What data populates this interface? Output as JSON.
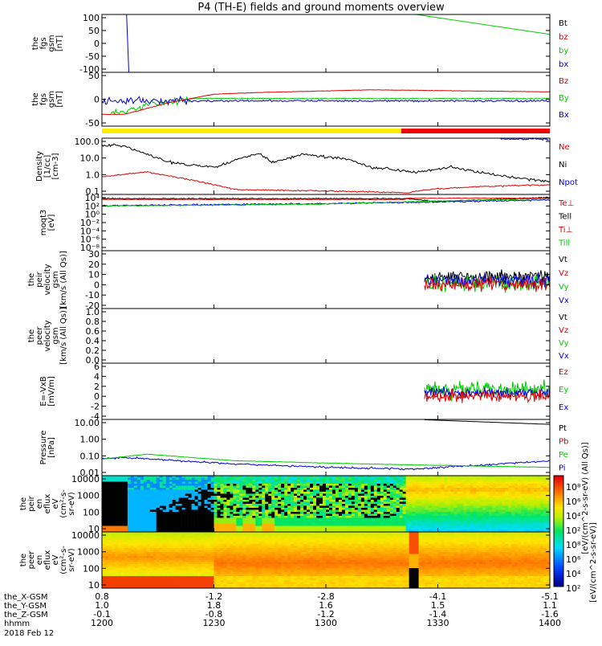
{
  "title": "P4 (TH-E) fields and ground moments overview",
  "colors": {
    "black": "#000000",
    "red": "#dd0000",
    "green": "#00cc00",
    "blue": "#0000dd",
    "yellow": "#ffee00",
    "barred": "#ee0000"
  },
  "panels": [
    {
      "key": "p1",
      "ylabel": [
        "the",
        "fgs",
        "gsm",
        "[nT]"
      ],
      "yticks": [
        "100",
        "50",
        "0",
        "-50",
        "-100"
      ],
      "legend": [
        {
          "t": "Bt",
          "c": "black"
        },
        {
          "t": "bz",
          "c": "red"
        },
        {
          "t": "by",
          "c": "green"
        },
        {
          "t": "bx",
          "c": "blue"
        }
      ]
    },
    {
      "key": "p2",
      "ylabel": [
        "the",
        "fgs",
        "gsm",
        "[nT]"
      ],
      "yticks": [
        "50",
        "0",
        "-50"
      ],
      "legend": [
        {
          "t": "Bz",
          "c": "red"
        },
        {
          "t": "By",
          "c": "green"
        },
        {
          "t": "Bx",
          "c": "blue"
        }
      ]
    },
    {
      "key": "p3",
      "ylabel": [
        "Density",
        "[1/cc]",
        "[cm-3]"
      ],
      "yticks": [
        "100.0",
        "10.0",
        "1.0",
        "0.1"
      ],
      "legend": [
        {
          "t": "Ne",
          "c": "red"
        },
        {
          "t": "Ni",
          "c": "black"
        },
        {
          "t": "Npot",
          "c": "blue"
        }
      ]
    },
    {
      "key": "p4",
      "ylabel": [
        "moqt3",
        "[eV]"
      ],
      "yticks": [
        "10⁴",
        "10²",
        "10⁰",
        "10⁻²",
        "10⁻⁴",
        "10⁻⁶",
        "10⁻⁸"
      ],
      "legend": [
        {
          "t": "Te⊥",
          "c": "red"
        },
        {
          "t": "Tell",
          "c": "black"
        },
        {
          "t": "Ti⊥",
          "c": "red"
        },
        {
          "t": "Till",
          "c": "green"
        }
      ]
    },
    {
      "key": "p5",
      "ylabel": [
        "the",
        "peir",
        "velocity",
        "gsm",
        "[km/s (All Qs)]"
      ],
      "yticks": [
        "30",
        "20",
        "10",
        "0",
        "-10",
        "-20"
      ],
      "legend": [
        {
          "t": "Vt",
          "c": "black"
        },
        {
          "t": "Vz",
          "c": "red"
        },
        {
          "t": "Vy",
          "c": "green"
        },
        {
          "t": "Vx",
          "c": "blue"
        }
      ]
    },
    {
      "key": "p6",
      "ylabel": [
        "the",
        "peer",
        "velocity",
        "gsm",
        "[km/s (All Qs)]"
      ],
      "yticks": [
        "1.0",
        "0.8",
        "0.6",
        "0.4",
        "0.2",
        "0.0"
      ],
      "legend": [
        {
          "t": "Vt",
          "c": "black"
        },
        {
          "t": "Vz",
          "c": "red"
        },
        {
          "t": "Vy",
          "c": "green"
        },
        {
          "t": "Vx",
          "c": "blue"
        }
      ]
    },
    {
      "key": "p7",
      "ylabel": [
        "E=-VxB",
        "[mV/m]"
      ],
      "yticks": [
        "6",
        "4",
        "2",
        "0",
        "-2",
        "-4"
      ],
      "legend": [
        {
          "t": "Ez",
          "c": "red"
        },
        {
          "t": "Ey",
          "c": "green"
        },
        {
          "t": "Ex",
          "c": "blue"
        }
      ]
    },
    {
      "key": "p8",
      "ylabel": [
        "Pressure",
        "[nPa]"
      ],
      "yticks": [
        "10.00",
        "1.00",
        "0.10",
        "0.01"
      ],
      "legend": [
        {
          "t": "Pt",
          "c": "black"
        },
        {
          "t": "Pb",
          "c": "red"
        },
        {
          "t": "Pe",
          "c": "green"
        },
        {
          "t": "Pi",
          "c": "blue"
        }
      ]
    },
    {
      "key": "p9",
      "ylabel": [
        "the",
        "peir",
        "en",
        "eflux",
        "eV",
        "(cm²-s-",
        "sr-eV)"
      ],
      "yticks": [
        "10000",
        "1000",
        "100",
        "10"
      ],
      "legend": []
    },
    {
      "key": "p10",
      "ylabel": [
        "the",
        "peer",
        "en",
        "eflux",
        "eV",
        "(cm²-s-",
        "sr-eV)"
      ],
      "yticks": [
        "10000",
        "1000",
        "100",
        "10"
      ],
      "legend": []
    }
  ],
  "colorbar": {
    "ticks": [
      "10⁸",
      "10⁶",
      "10⁴",
      "10²"
    ],
    "label": "[eV/(cm^2-s-sr-eV)]",
    "label2": "[eV/(cm^2-s-sr-eV) (All Qs)]"
  },
  "xaxis": {
    "rows": [
      {
        "name": "the_X-GSM",
        "values": [
          "0.8",
          "-1.2",
          "-2.8",
          "-4.1",
          "-5.1"
        ]
      },
      {
        "name": "the_Y-GSM",
        "values": [
          "1.0",
          "1.8",
          "1.6",
          "1.5",
          "1.1"
        ]
      },
      {
        "name": "the_Z-GSM",
        "values": [
          "-0.1",
          "-0.8",
          "-1.2",
          "-1.4",
          "-1.6"
        ]
      },
      {
        "name": "hhmm",
        "values": [
          "1200",
          "1230",
          "1300",
          "1330",
          "1400"
        ]
      }
    ],
    "date": "2018 Feb 12"
  },
  "chart_data": {
    "type": "line",
    "x": [
      "1200",
      "1230",
      "1300",
      "1330",
      "1400"
    ],
    "series": [
      {
        "name": "by",
        "values": [
          null,
          null,
          100,
          60,
          30
        ]
      },
      {
        "name": "Bz",
        "values": [
          -45,
          10,
          25,
          30,
          28
        ]
      },
      {
        "name": "Ni",
        "values": [
          80,
          3,
          10,
          0.7,
          0.35
        ]
      },
      {
        "name": "Ne",
        "values": [
          0.8,
          1.0,
          0.1,
          0.15,
          0.3
        ]
      }
    ]
  }
}
